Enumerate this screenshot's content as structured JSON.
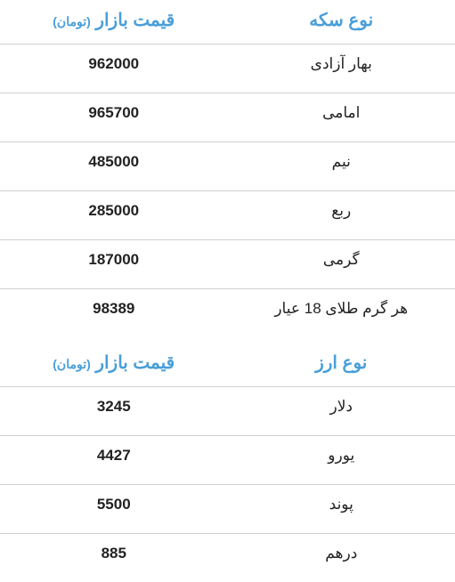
{
  "coin_table": {
    "header_name": "نوع سکه",
    "header_price_main": "قیمت بازار",
    "header_price_sub": "(تومان)",
    "rows": [
      {
        "name": "بهار آزادی",
        "price": "962000"
      },
      {
        "name": "امامی",
        "price": "965700"
      },
      {
        "name": "نیم",
        "price": "485000"
      },
      {
        "name": "ربع",
        "price": "285000"
      },
      {
        "name": "گرمی",
        "price": "187000"
      },
      {
        "name": "هر گرم طلای 18 عیار",
        "price": "98389"
      }
    ]
  },
  "currency_table": {
    "header_name": "نوع ارز",
    "header_price_main": "قیمت بازار",
    "header_price_sub": "(تومان)",
    "rows": [
      {
        "name": "دلار",
        "price": "3245"
      },
      {
        "name": "یورو",
        "price": "4427"
      },
      {
        "name": "پوند",
        "price": "5500"
      },
      {
        "name": "درهم",
        "price": "885"
      }
    ]
  },
  "style": {
    "header_color": "#4a9fd8",
    "text_color": "#222222",
    "border_color": "#d0d0d0",
    "background_color": "#ffffff",
    "header_fontsize": 20,
    "header_sub_fontsize": 14,
    "cell_fontsize": 17
  }
}
